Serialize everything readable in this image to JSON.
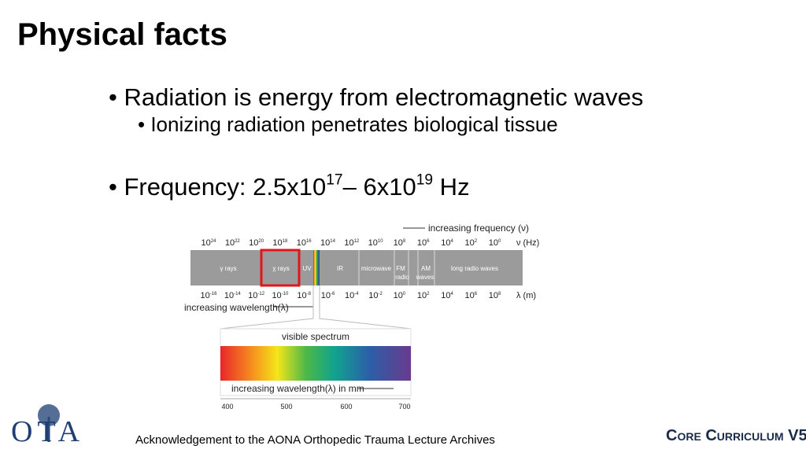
{
  "title": "Physical facts",
  "bullets": [
    {
      "text": "Radiation is energy from electromagnetic waves",
      "sub": [
        "Ionizing radiation penetrates biological tissue"
      ]
    },
    {
      "parts": [
        "Frequency: 2.5x10",
        "17",
        "– 6x10",
        "19",
        " Hz"
      ]
    }
  ],
  "diagram": {
    "frequency_label": "increasing frequency (ν)",
    "power_base": "10",
    "frequency_exponents": [
      "24",
      "22",
      "20",
      "18",
      "16",
      "14",
      "12",
      "10",
      "8",
      "6",
      "4",
      "2",
      "0"
    ],
    "frequency_unit": "ν (Hz)",
    "bands": [
      "γ rays",
      "χ rays",
      "UV",
      "IR",
      "microwave",
      "FM",
      "radio",
      "AM",
      "waves",
      "long radio waves"
    ],
    "wavelength_exponents": [
      "-16",
      "-14",
      "-12",
      "-10",
      "-8",
      "-6",
      "-4",
      "-2",
      "0",
      "2",
      "4",
      "6",
      "8"
    ],
    "wavelength_unit": "λ (m)",
    "wavelength_label": "increasing wavelength(λ)",
    "visible_title": "visible spectrum",
    "visible_label": "increasing wavelength(λ) in mm",
    "visible_ticks": [
      "400",
      "500",
      "600",
      "700"
    ]
  },
  "footer": {
    "logo": "OTA",
    "acknowledgement": "Acknowledgement to the AONA Orthopedic Trauma Lecture Archives",
    "brand": "Core Curriculum",
    "version": "V5"
  }
}
